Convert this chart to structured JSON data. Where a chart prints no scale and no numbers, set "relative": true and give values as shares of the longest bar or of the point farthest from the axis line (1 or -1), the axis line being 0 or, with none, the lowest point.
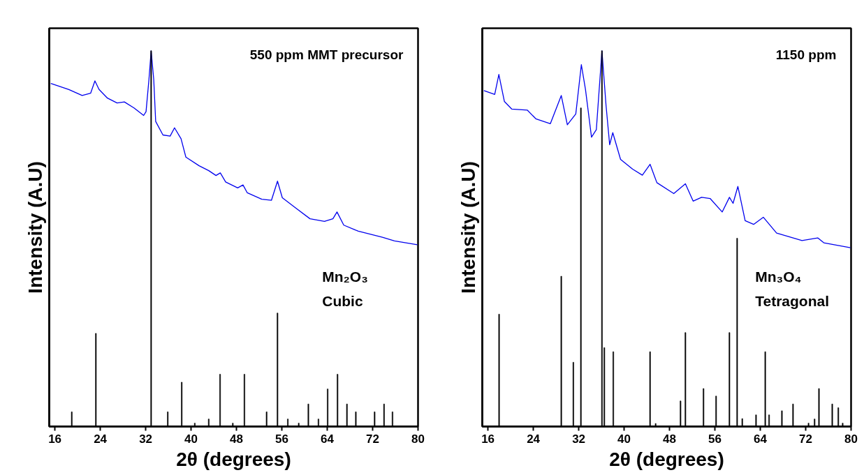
{
  "chart_data": [
    {
      "type": "line",
      "relative": true,
      "xlabel": "2θ (degrees)",
      "ylabel": "Intensity (A.U)",
      "xlim": [
        15,
        80
      ],
      "xticks": [
        16,
        24,
        32,
        40,
        48,
        56,
        64,
        72,
        80
      ],
      "annotations": [
        "550 ppm MMT precursor"
      ],
      "series": [
        {
          "color": "#0000ee",
          "x": [
            15.28,
            18.46,
            20.8,
            22.29,
            23.05,
            23.78,
            25.26,
            26.96,
            28.24,
            29.94,
            31.64,
            32.06,
            32.57,
            32.96,
            33.42,
            33.76,
            35.04,
            36.31,
            37.08,
            38.23,
            39.08,
            41.41,
            43.11,
            44.39,
            45.15,
            46.09,
            48.21,
            49.15,
            49.91,
            52.46,
            54.16,
            55.23,
            56.08,
            58.41,
            60.96,
            63.51,
            65.0,
            65.72,
            66.91,
            69.46,
            73.71,
            75.84,
            79.88
          ],
          "values": [
            0.913,
            0.897,
            0.881,
            0.887,
            0.92,
            0.897,
            0.874,
            0.861,
            0.864,
            0.848,
            0.828,
            0.838,
            0.923,
            1.0,
            0.923,
            0.812,
            0.776,
            0.773,
            0.795,
            0.766,
            0.717,
            0.694,
            0.681,
            0.668,
            0.675,
            0.651,
            0.635,
            0.643,
            0.622,
            0.605,
            0.602,
            0.653,
            0.609,
            0.582,
            0.553,
            0.546,
            0.553,
            0.571,
            0.536,
            0.52,
            0.504,
            0.494,
            0.484
          ]
        },
        {
          "type": "bar",
          "name": "Mn₂O₃\nCubic",
          "color": "#000000",
          "x": [
            18.97,
            23.22,
            32.96,
            35.89,
            38.35,
            40.65,
            43.11,
            45.11,
            47.36,
            49.4,
            53.31,
            55.23,
            57.05,
            58.97,
            60.67,
            62.45,
            64.07,
            65.81,
            67.47,
            69.04,
            72.35,
            74.01,
            75.5
          ],
          "values": [
            0.039,
            0.248,
            1.0,
            0.039,
            0.118,
            0.009,
            0.02,
            0.139,
            0.009,
            0.139,
            0.039,
            0.302,
            0.02,
            0.009,
            0.06,
            0.02,
            0.1,
            0.139,
            0.06,
            0.039,
            0.039,
            0.06,
            0.039
          ]
        }
      ]
    },
    {
      "type": "line",
      "relative": true,
      "xlabel": "2θ (degrees)",
      "ylabel": "Intensity (A.U)",
      "xlim": [
        15,
        80
      ],
      "xticks": [
        16,
        24,
        32,
        40,
        48,
        56,
        64,
        72,
        80
      ],
      "annotations": [
        "1150 ppm"
      ],
      "series": [
        {
          "color": "#0000ee",
          "x": [
            15.28,
            17.19,
            17.92,
            18.9,
            20.18,
            22.95,
            24.44,
            27.0,
            28.92,
            29.99,
            31.48,
            32.46,
            33.19,
            34.25,
            35.1,
            36.09,
            36.81,
            37.45,
            38.0,
            39.37,
            41.5,
            43.21,
            44.57,
            45.77,
            48.75,
            50.8,
            52.16,
            53.65,
            55.15,
            57.28,
            58.56,
            59.2,
            60.05,
            61.33,
            62.82,
            64.53,
            66.87,
            71.35,
            74.12,
            75.19,
            79.88
          ],
          "values": [
            0.894,
            0.884,
            0.937,
            0.865,
            0.845,
            0.842,
            0.819,
            0.806,
            0.881,
            0.803,
            0.832,
            0.963,
            0.897,
            0.77,
            0.79,
            1.0,
            0.855,
            0.75,
            0.782,
            0.711,
            0.685,
            0.669,
            0.698,
            0.649,
            0.62,
            0.646,
            0.6,
            0.61,
            0.607,
            0.571,
            0.61,
            0.594,
            0.639,
            0.548,
            0.538,
            0.557,
            0.515,
            0.495,
            0.502,
            0.489,
            0.476
          ]
        },
        {
          "type": "bar",
          "name": "Mn₃O₄\nTetragonal",
          "color": "#000000",
          "x": [
            17.96,
            28.92,
            31.05,
            32.38,
            36.09,
            36.51,
            38.09,
            44.57,
            45.55,
            49.94,
            50.8,
            53.99,
            56.21,
            58.56,
            59.92,
            60.82,
            63.25,
            64.87,
            65.55,
            67.81,
            69.77,
            72.5,
            73.57,
            74.34,
            76.68,
            77.75,
            78.52
          ],
          "values": [
            0.299,
            0.4,
            0.171,
            0.848,
            1.0,
            0.21,
            0.199,
            0.199,
            0.008,
            0.068,
            0.25,
            0.101,
            0.081,
            0.25,
            0.501,
            0.021,
            0.031,
            0.199,
            0.031,
            0.042,
            0.06,
            0.009,
            0.02,
            0.101,
            0.06,
            0.05,
            0.009
          ]
        }
      ]
    }
  ]
}
